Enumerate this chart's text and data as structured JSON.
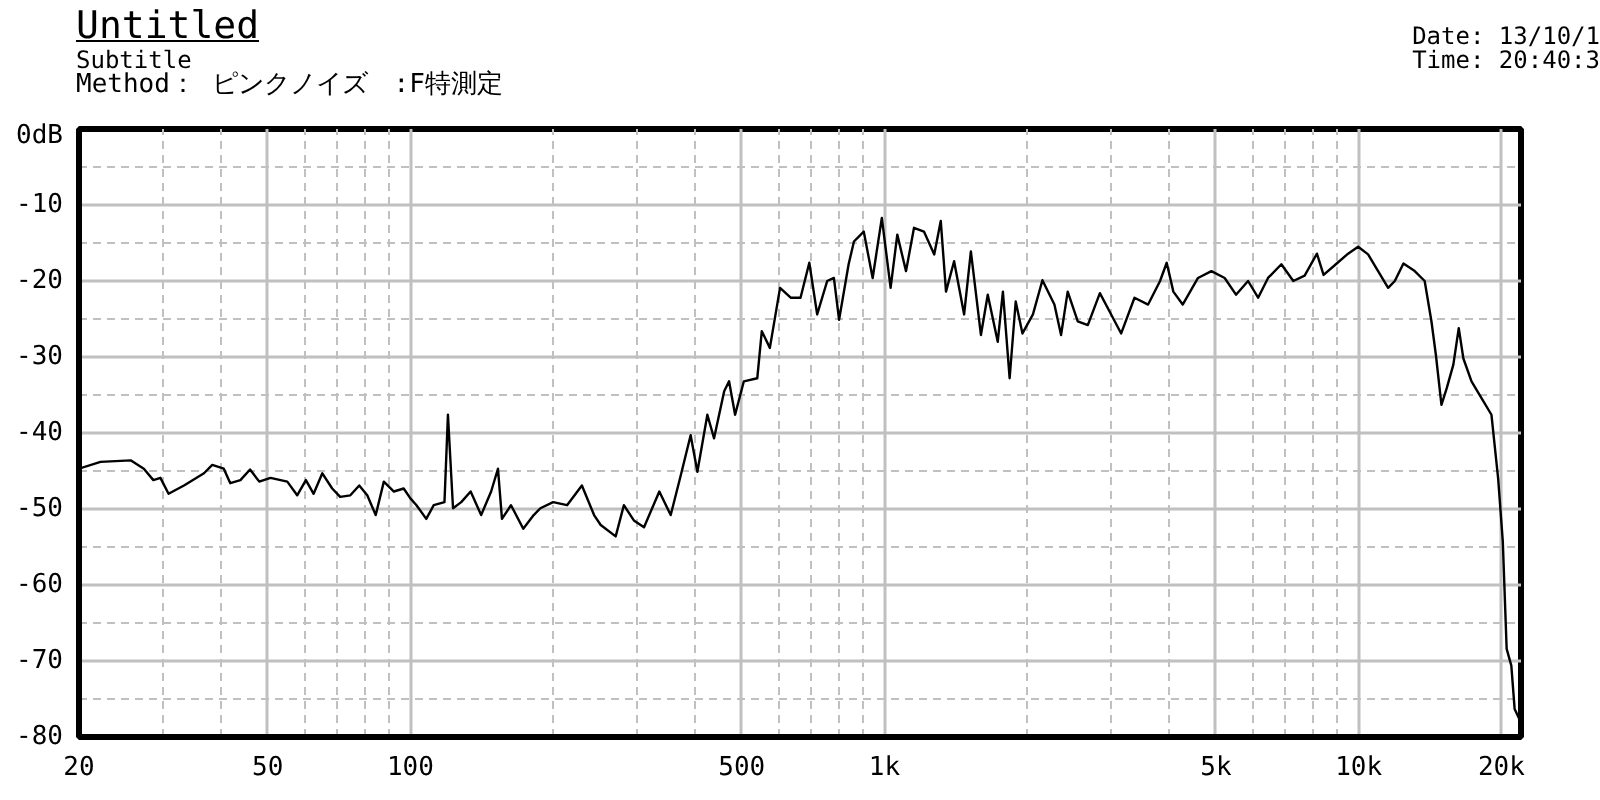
{
  "chart_data": {
    "type": "line",
    "title": "Untitled",
    "subtitle": "Subtitle",
    "annotations": [
      "Method： ピンクノイズ　:F特測定",
      "Date: 13/10/1",
      "Time: 20:40:3"
    ],
    "log": "x",
    "grid": true,
    "marker": "none",
    "line_style": "solid",
    "xlim": [
      20,
      22000
    ],
    "ylim": [
      -80,
      0
    ],
    "xticks": [
      20,
      {
        "value": 30,
        "label": null
      },
      {
        "value": 40,
        "label": null
      },
      50,
      {
        "value": 60,
        "label": null
      },
      {
        "value": 70,
        "label": null
      },
      {
        "value": 80,
        "label": null
      },
      {
        "value": 90,
        "label": null
      },
      100,
      {
        "value": 200,
        "label": null
      },
      {
        "value": 300,
        "label": null
      },
      {
        "value": 400,
        "label": null
      },
      500,
      {
        "value": 600,
        "label": null
      },
      {
        "value": 700,
        "label": null
      },
      {
        "value": 800,
        "label": null
      },
      {
        "value": 900,
        "label": null
      },
      {
        "value": 1000,
        "label": "1k"
      },
      {
        "value": 2000,
        "label": null
      },
      {
        "value": 3000,
        "label": null
      },
      {
        "value": 4000,
        "label": null
      },
      {
        "value": 5000,
        "label": "5k"
      },
      {
        "value": 6000,
        "label": null
      },
      {
        "value": 7000,
        "label": null
      },
      {
        "value": 8000,
        "label": null
      },
      {
        "value": 9000,
        "label": null
      },
      {
        "value": 10000,
        "label": "10k"
      },
      {
        "value": 20000,
        "label": "20k"
      }
    ],
    "yticks": [
      {
        "value": 0,
        "label": "0dB"
      },
      {
        "value": -5,
        "label": null
      },
      -10,
      {
        "value": -15,
        "label": null
      },
      -20,
      {
        "value": -25,
        "label": null
      },
      -30,
      {
        "value": -35,
        "label": null
      },
      -40,
      {
        "value": -45,
        "label": null
      },
      -50,
      {
        "value": -55,
        "label": null
      },
      -60,
      {
        "value": -65,
        "label": null
      },
      -70,
      {
        "value": -75,
        "label": null
      },
      -80
    ],
    "series": [
      {
        "color": "#000000",
        "x": [
          20,
          22.2,
          25.7,
          27.4,
          28.7,
          29.7,
          30.9,
          33.3,
          36.7,
          38.2,
          40.4,
          41.7,
          43.8,
          45.9,
          48.0,
          50.7,
          55.0,
          57.7,
          60.2,
          62.5,
          65.2,
          68.4,
          71.1,
          74.7,
          78.0,
          81.1,
          84.5,
          87.9,
          92.3,
          96.8,
          100,
          103,
          108,
          112,
          118,
          120,
          123,
          128,
          134,
          141,
          148,
          153,
          156,
          163,
          173,
          182,
          188,
          200,
          214,
          230,
          244,
          252,
          271,
          282,
          296,
          311,
          324,
          335,
          354,
          372,
          390,
          403,
          423,
          437,
          459,
          470,
          484,
          505,
          539,
          551,
          573,
          602,
          634,
          665,
          694,
          721,
          757,
          782,
          802,
          840,
          862,
          904,
          944,
          987,
          1030,
          1064,
          1110,
          1154,
          1211,
          1273,
          1314,
          1348,
          1402,
          1472,
          1521,
          1597,
          1651,
          1733,
          1777,
          1836,
          1891,
          1954,
          2056,
          2153,
          2282,
          2357,
          2434,
          2556,
          2684,
          2846,
          3006,
          3156,
          3367,
          3597,
          3812,
          3937,
          4066,
          4255,
          4583,
          4891,
          5217,
          5512,
          5845,
          6137,
          6440,
          6871,
          7281,
          7693,
          8166,
          8434,
          8953,
          9500,
          9976,
          10470,
          10990,
          11540,
          11920,
          12430,
          13130,
          13780,
          14240,
          14550,
          14950,
          15340,
          15840,
          16260,
          16630,
          17300,
          18160,
          19060,
          19690,
          20140,
          20520,
          20990,
          21330,
          21920
        ],
        "values": [
          -44.7,
          -43.8,
          -43.6,
          -44.7,
          -46.2,
          -45.9,
          -48.0,
          -46.9,
          -45.3,
          -44.2,
          -44.7,
          -46.6,
          -46.2,
          -44.8,
          -46.4,
          -45.9,
          -46.4,
          -48.2,
          -46.2,
          -48.0,
          -45.3,
          -47.3,
          -48.4,
          -48.2,
          -46.9,
          -48.2,
          -50.8,
          -46.4,
          -47.7,
          -47.3,
          -48.6,
          -49.5,
          -51.3,
          -49.5,
          -49.1,
          -37.6,
          -49.9,
          -49.1,
          -47.7,
          -50.8,
          -47.7,
          -44.7,
          -51.3,
          -49.5,
          -52.6,
          -50.8,
          -49.9,
          -49.1,
          -49.5,
          -46.9,
          -50.8,
          -52.1,
          -53.6,
          -49.5,
          -51.5,
          -52.4,
          -49.8,
          -47.7,
          -50.8,
          -45.5,
          -40.3,
          -45.1,
          -37.6,
          -40.7,
          -34.5,
          -33.2,
          -37.6,
          -33.2,
          -32.8,
          -26.6,
          -28.8,
          -20.9,
          -22.2,
          -22.2,
          -17.6,
          -24.4,
          -20.0,
          -19.6,
          -25.1,
          -17.8,
          -14.8,
          -13.5,
          -19.6,
          -11.7,
          -20.9,
          -13.9,
          -18.7,
          -13.0,
          -13.5,
          -16.5,
          -12.1,
          -21.4,
          -17.4,
          -24.4,
          -16.1,
          -27.1,
          -21.8,
          -28.0,
          -21.4,
          -32.8,
          -22.7,
          -26.9,
          -24.4,
          -19.9,
          -23.1,
          -27.1,
          -21.4,
          -25.3,
          -25.8,
          -21.6,
          -24.4,
          -26.9,
          -22.2,
          -23.1,
          -20.0,
          -17.6,
          -21.4,
          -23.1,
          -19.6,
          -18.7,
          -19.6,
          -21.8,
          -20.0,
          -22.2,
          -19.6,
          -17.8,
          -20.0,
          -19.3,
          -16.4,
          -19.2,
          -17.8,
          -16.4,
          -15.5,
          -16.5,
          -18.7,
          -20.9,
          -20.0,
          -17.7,
          -18.7,
          -20.0,
          -25.3,
          -29.7,
          -36.3,
          -34.1,
          -31.0,
          -26.2,
          -30.2,
          -33.2,
          -35.4,
          -37.6,
          -46.0,
          -54.3,
          -68.4,
          -70.6,
          -76.3,
          -77.9
        ]
      }
    ]
  }
}
